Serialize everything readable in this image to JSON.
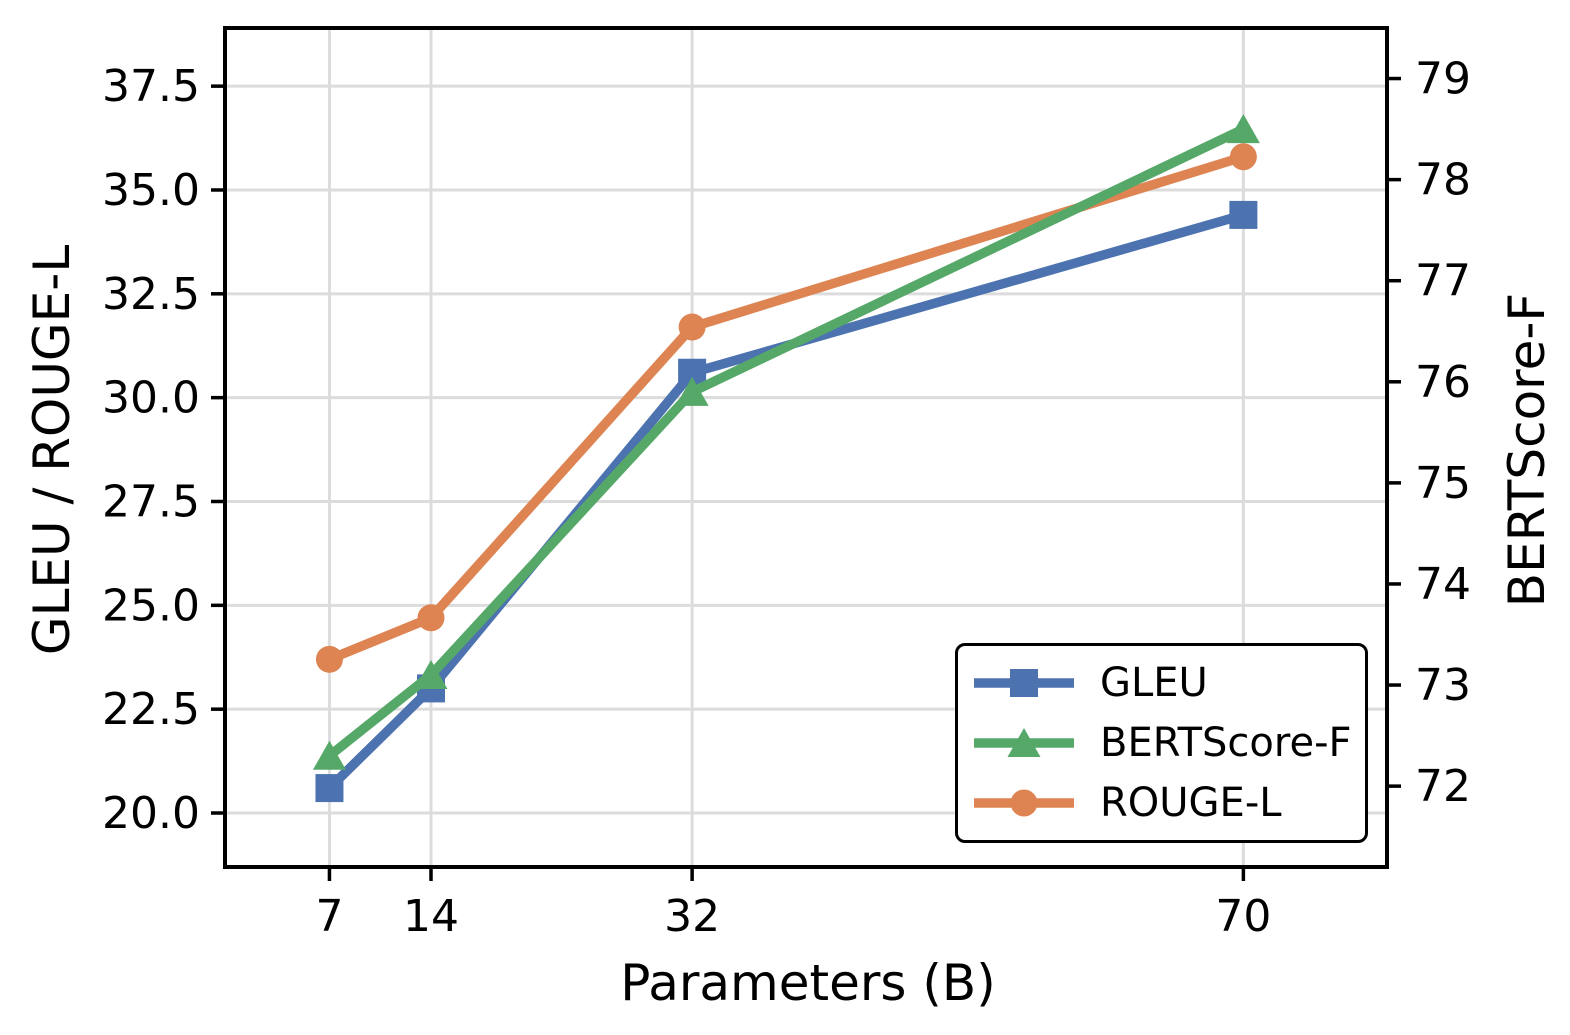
{
  "colors": {
    "background": "#FFFFFF",
    "grid": "#DCDCDC",
    "axis": "#000000",
    "text": "#000000",
    "gleu_blue": "#4C72B0",
    "bertscore_green": "#55A868",
    "rouge_orange": "#DD8452"
  },
  "chart_data": {
    "type": "line",
    "x": [
      7,
      14,
      32,
      70
    ],
    "x_ticklabels": [
      "7",
      "14",
      "32",
      "70"
    ],
    "series": [
      {
        "name": "GLEU",
        "axis": "left",
        "color": "#4C72B0",
        "marker": "square",
        "values": [
          20.6,
          23.0,
          30.6,
          34.4
        ]
      },
      {
        "name": "BERTScore-F",
        "axis": "right",
        "color": "#55A868",
        "marker": "triangle",
        "values": [
          72.3,
          73.1,
          75.9,
          78.5
        ]
      },
      {
        "name": "ROUGE-L",
        "axis": "left",
        "color": "#DD8452",
        "marker": "circle",
        "values": [
          23.7,
          24.7,
          31.7,
          35.8
        ]
      }
    ],
    "draw_order": [
      0,
      2,
      1
    ],
    "title": "",
    "xlabel": "Parameters (B)",
    "ylabel_left": "GLEU / ROUGE-L",
    "ylabel_right": "BERTScore-F",
    "xlim": [
      -0.2,
      79.9
    ],
    "ylim_left": [
      18.7,
      38.9
    ],
    "ylim_right": [
      71.2,
      79.5
    ],
    "yticks_left": [
      20.0,
      22.5,
      25.0,
      27.5,
      30.0,
      32.5,
      35.0,
      37.5
    ],
    "ytick_labels_left": [
      "20.0",
      "22.5",
      "25.0",
      "27.5",
      "30.0",
      "32.5",
      "35.0",
      "37.5"
    ],
    "yticks_right": [
      72,
      73,
      74,
      75,
      76,
      77,
      78,
      79
    ],
    "ytick_labels_right": [
      "72",
      "73",
      "74",
      "75",
      "76",
      "77",
      "78",
      "79"
    ],
    "grid": true,
    "legend_position": "lower right"
  }
}
